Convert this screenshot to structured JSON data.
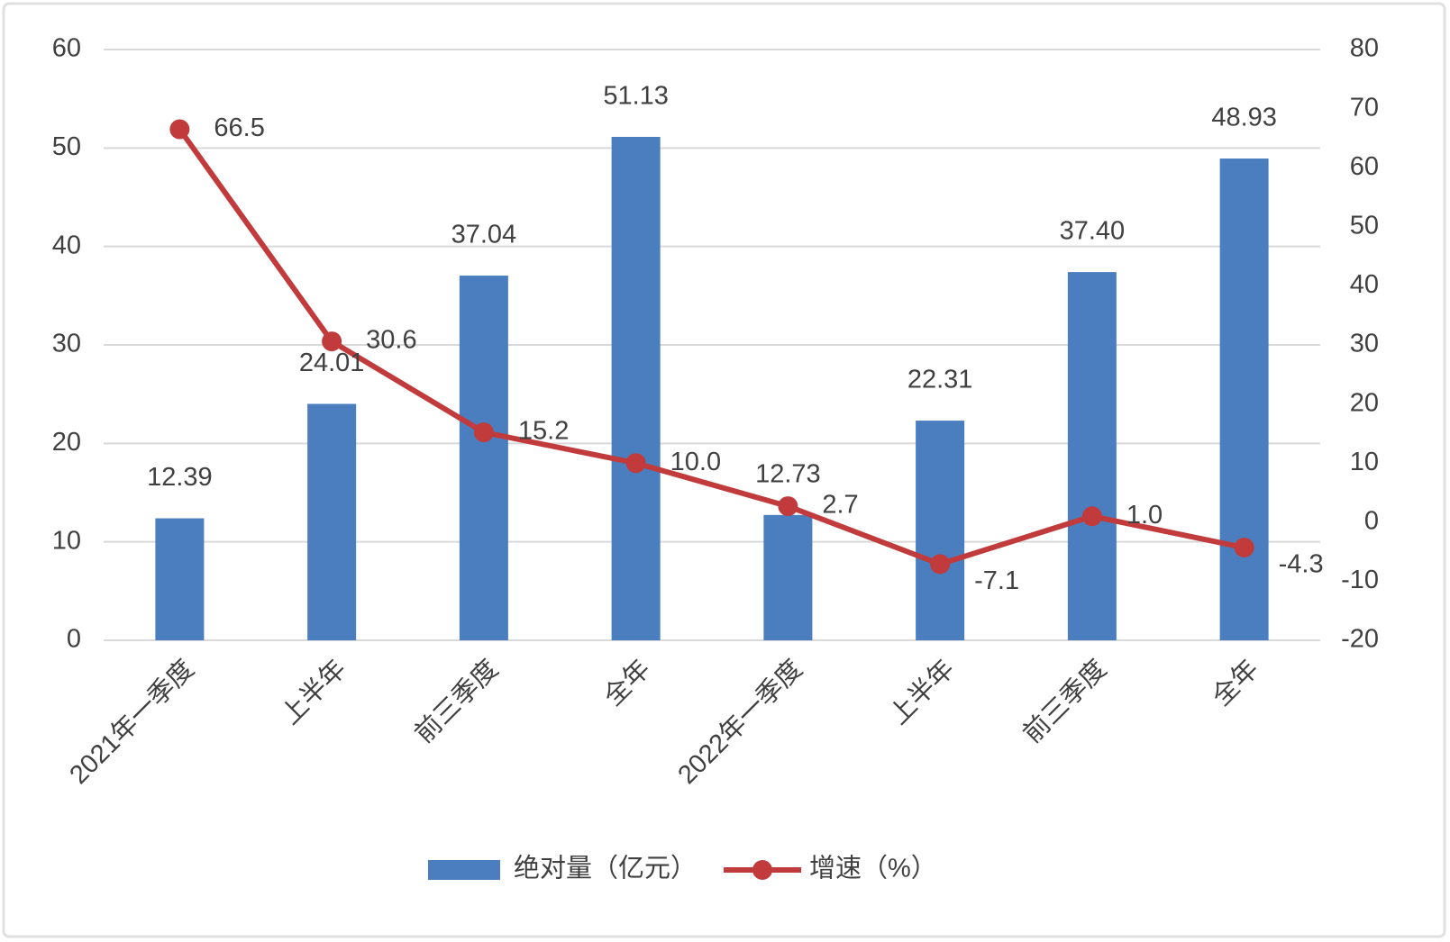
{
  "chart_data": {
    "type": "bar",
    "categories": [
      "2021年一季度",
      "上半年",
      "前三季度",
      "全年",
      "2022年一季度",
      "上半年",
      "前三季度",
      "全年"
    ],
    "series": [
      {
        "name": "绝对量（亿元）",
        "type": "bar",
        "color": "#4a7ebf",
        "values": [
          12.39,
          24.01,
          37.04,
          51.13,
          12.73,
          22.31,
          37.4,
          48.93
        ],
        "value_labels": [
          "12.39",
          "24.01",
          "37.04",
          "51.13",
          "12.73",
          "22.31",
          "37.40",
          "48.93"
        ]
      },
      {
        "name": "增速（%）",
        "type": "line",
        "axis": "y2",
        "color": "#c23b3c",
        "values": [
          66.5,
          30.6,
          15.2,
          10.0,
          2.7,
          -7.1,
          1.0,
          -4.3
        ],
        "value_labels": [
          "66.5",
          "30.6",
          "15.2",
          "10.0",
          "2.7",
          "-7.1",
          "1.0",
          "-4.3"
        ]
      }
    ],
    "ylim": [
      0,
      60
    ],
    "yticks": [
      0,
      10,
      20,
      30,
      40,
      50,
      60
    ],
    "y2lim": [
      -20,
      80
    ],
    "y2ticks": [
      -20,
      -10,
      0,
      10,
      20,
      30,
      40,
      50,
      60,
      70,
      80
    ],
    "grid": true,
    "legend": "bottom"
  }
}
